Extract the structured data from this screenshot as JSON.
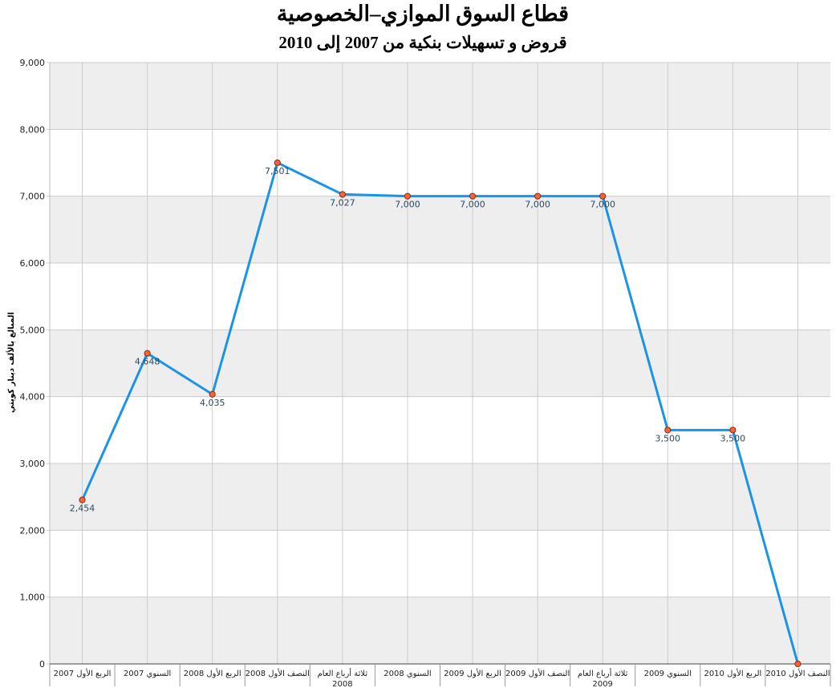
{
  "chart_data": {
    "type": "line",
    "title": "قطاع السوق الموازي–الخصوصية",
    "subtitle": "قروض و تسهيلات بنكية من 2007 إلى 2010",
    "ylabel": "المبالغ بالألف دينار كويتي",
    "xlabel": "",
    "ylim": [
      0,
      9000
    ],
    "yticks": [
      "0",
      "1,000",
      "2,000",
      "3,000",
      "4,000",
      "5,000",
      "6,000",
      "7,000",
      "8,000",
      "9,000"
    ],
    "grid": true,
    "categories": [
      [
        "الربع الأول 2007"
      ],
      [
        "السنوي 2007"
      ],
      [
        "الربع الأول 2008"
      ],
      [
        "النصف الأول 2008"
      ],
      [
        "ثلاثة أرباع العام",
        "2008"
      ],
      [
        "السنوي 2008"
      ],
      [
        "الربع الأول 2009"
      ],
      [
        "النصف الأول 2009"
      ],
      [
        "ثلاثة أرباع العام",
        "2009"
      ],
      [
        "السنوي 2009"
      ],
      [
        "الربع الأول 2010"
      ],
      [
        "النصف الأول 2010"
      ]
    ],
    "series": [
      {
        "values": [
          2454,
          4648,
          4035,
          7501,
          7027,
          7000,
          7000,
          7000,
          7000,
          3500,
          3500,
          0
        ],
        "labels": [
          "2,454",
          "4,648",
          "4,035",
          "7,501",
          "7,027",
          "7,000",
          "7,000",
          "7,000",
          "7,000",
          "3,500",
          "3,500",
          ""
        ]
      }
    ],
    "colors": {
      "line": "#1a94e6",
      "marker_fill": "#f0663a",
      "marker_stroke": "#8a2a10",
      "band": "#eeeeee",
      "grid": "#cccccc"
    }
  }
}
